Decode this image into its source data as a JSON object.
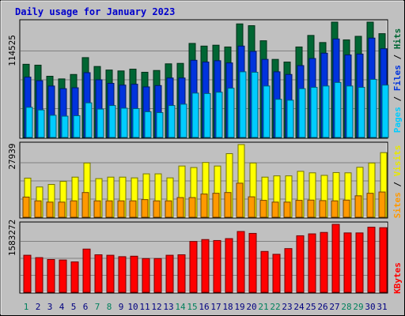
{
  "chart_data": [
    {
      "type": "bar",
      "title": "Daily usage for January 2023",
      "ymax_label": "114525",
      "categories": [
        "1",
        "2",
        "3",
        "4",
        "5",
        "6",
        "7",
        "8",
        "9",
        "10",
        "11",
        "12",
        "13",
        "14",
        "15",
        "16",
        "17",
        "18",
        "19",
        "20",
        "21",
        "22",
        "23",
        "24",
        "25",
        "26",
        "27",
        "28",
        "29",
        "30",
        "31"
      ],
      "weekend_days": [
        "1",
        "7",
        "8",
        "14",
        "15",
        "21",
        "22",
        "28",
        "29"
      ],
      "series": [
        {
          "name": "Hits",
          "color": "#006633",
          "values": [
            82500,
            81500,
            69000,
            66000,
            71000,
            90000,
            80000,
            76000,
            75000,
            77000,
            73500,
            75500,
            83000,
            83500,
            106000,
            103000,
            104000,
            102000,
            128000,
            126000,
            109000,
            88000,
            85000,
            102000,
            115000,
            107000,
            130000,
            110000,
            114000,
            130000,
            117000
          ]
        },
        {
          "name": "Files",
          "color": "#0033dd",
          "values": [
            68000,
            64000,
            58000,
            55000,
            56000,
            73000,
            65000,
            61000,
            59000,
            60000,
            57000,
            58500,
            67000,
            67000,
            87000,
            85000,
            86500,
            84000,
            103000,
            97000,
            88000,
            74000,
            71000,
            81000,
            89000,
            95000,
            111000,
            93000,
            94000,
            112000,
            100000
          ]
        },
        {
          "name": "Pages",
          "color": "#00ccff",
          "values": [
            34000,
            31000,
            25000,
            24000,
            24500,
            39000,
            32000,
            36000,
            33000,
            32500,
            29000,
            28000,
            36000,
            37500,
            50000,
            49500,
            51000,
            55500,
            74000,
            73500,
            58000,
            43000,
            42000,
            55000,
            56500,
            58000,
            62000,
            58000,
            56500,
            65500,
            59000
          ]
        }
      ]
    },
    {
      "type": "bar",
      "ymax_label": "27939",
      "categories": [
        "1",
        "2",
        "3",
        "4",
        "5",
        "6",
        "7",
        "8",
        "9",
        "10",
        "11",
        "12",
        "13",
        "14",
        "15",
        "16",
        "17",
        "18",
        "19",
        "20",
        "21",
        "22",
        "23",
        "24",
        "25",
        "26",
        "27",
        "28",
        "29",
        "30",
        "31"
      ],
      "series": [
        {
          "name": "Visits",
          "color": "#ffff00",
          "values": [
            15500,
            12000,
            13000,
            14200,
            15900,
            21500,
            15300,
            15900,
            15900,
            15600,
            17200,
            17200,
            15600,
            20300,
            19700,
            21700,
            20300,
            25200,
            28800,
            21500,
            15900,
            16400,
            16400,
            18200,
            17600,
            16600,
            17700,
            17600,
            19800,
            21500,
            25600
          ]
        },
        {
          "name": "Sites",
          "color": "#ff9900",
          "values": [
            8000,
            6500,
            6000,
            6000,
            6500,
            9800,
            6500,
            6500,
            6500,
            6500,
            7000,
            6500,
            6500,
            7800,
            7800,
            9200,
            9500,
            9800,
            13500,
            8100,
            6700,
            6000,
            6000,
            6700,
            6800,
            6600,
            6500,
            6800,
            8500,
            9500,
            10000
          ]
        }
      ]
    },
    {
      "type": "bar",
      "ymax_label": "1583272",
      "categories": [
        "1",
        "2",
        "3",
        "4",
        "5",
        "6",
        "7",
        "8",
        "9",
        "10",
        "11",
        "12",
        "13",
        "14",
        "15",
        "16",
        "17",
        "18",
        "19",
        "20",
        "21",
        "22",
        "23",
        "24",
        "25",
        "26",
        "27",
        "28",
        "29",
        "30",
        "31"
      ],
      "series": [
        {
          "name": "KBytes",
          "color": "#ff0000",
          "values": [
            780000,
            730000,
            690000,
            680000,
            640000,
            910000,
            790000,
            780000,
            750000,
            760000,
            710000,
            710000,
            780000,
            790000,
            1070000,
            1110000,
            1090000,
            1130000,
            1280000,
            1240000,
            860000,
            800000,
            920000,
            1190000,
            1230000,
            1260000,
            1430000,
            1250000,
            1250000,
            1370000,
            1360000
          ]
        }
      ]
    }
  ],
  "legend_labels": {
    "top": [
      "Hits",
      "Files",
      "Pages"
    ],
    "middle": [
      "Visits",
      "Sites"
    ],
    "bottom": [
      "KBytes"
    ],
    "separator": "/"
  },
  "colors": {
    "background": "#c0c0c0",
    "title_text": "#0000cc",
    "weekday_label": "#000080",
    "weekend_label": "#00805c",
    "gridline": "#808080",
    "frame_dark": "#808080",
    "frame_light": "#ffffff"
  }
}
